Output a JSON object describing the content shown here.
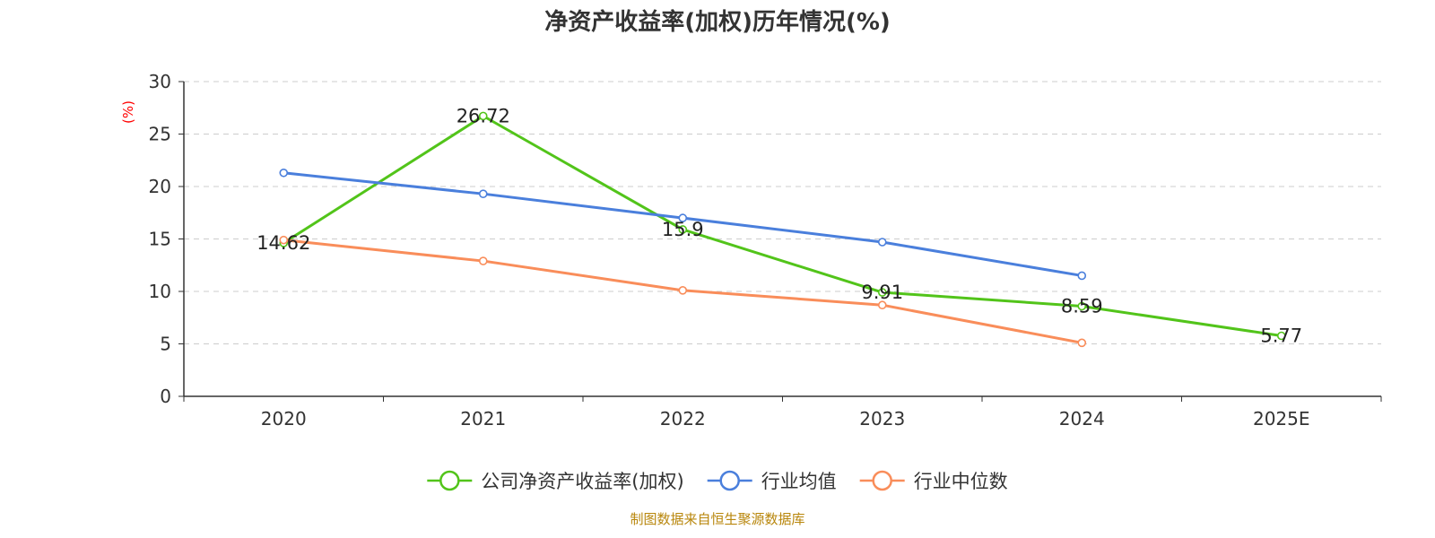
{
  "chart_data": {
    "type": "line",
    "title": "净资产收益率(加权)历年情况(%)",
    "xlabel": "",
    "ylabel": "(%)",
    "categories": [
      "2020",
      "2021",
      "2022",
      "2023",
      "2024",
      "2025E"
    ],
    "ylim": [
      0,
      30
    ],
    "yticks": [
      0,
      5,
      10,
      15,
      20,
      25,
      30
    ],
    "grid": true,
    "legend_position": "bottom",
    "series": [
      {
        "name": "公司净资产收益率(加权)",
        "color": "#52c41a",
        "values": [
          14.62,
          26.72,
          15.9,
          9.91,
          8.59,
          5.77
        ],
        "labels": [
          "14.62",
          "26.72",
          "15.9",
          "9.91",
          "8.59",
          "5.77"
        ]
      },
      {
        "name": "行业均值",
        "color": "#4a7fdc",
        "values": [
          21.3,
          19.3,
          17.0,
          14.7,
          11.5,
          null
        ]
      },
      {
        "name": "行业中位数",
        "color": "#f98d5a",
        "values": [
          14.9,
          12.9,
          10.1,
          8.7,
          5.1,
          null
        ]
      }
    ],
    "source": "制图数据来自恒生聚源数据库",
    "ylabel_color": "#ff0000",
    "source_color": "#b8860b"
  }
}
